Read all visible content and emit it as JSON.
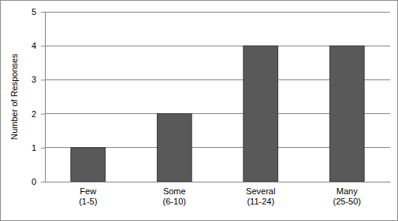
{
  "chart_data": {
    "type": "bar",
    "y_label": "Number of Responses",
    "categories": [
      "Few\n(1-5)",
      "Some\n(6-10)",
      "Several\n(11-24)",
      "Many\n(25-50)"
    ],
    "values": [
      1,
      2,
      4,
      4
    ],
    "color": "#595959",
    "ylim": [
      0,
      5
    ],
    "yticks": [
      0,
      1,
      2,
      3,
      4,
      5
    ],
    "grid": true
  }
}
